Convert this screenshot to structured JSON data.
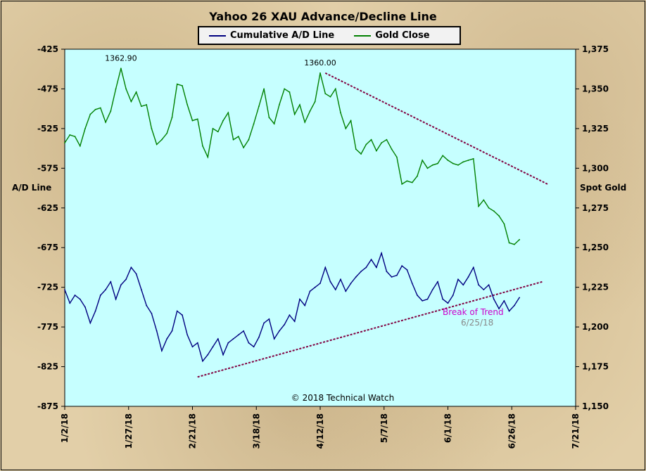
{
  "chart_data": {
    "type": "line",
    "title": "Yahoo 26 XAU Advance/Decline  Line",
    "ylabel_left": "A/D Line",
    "ylabel_right": "Spot Gold",
    "x_tick_labels": [
      "1/2/18",
      "1/27/18",
      "2/21/18",
      "3/18/18",
      "4/12/18",
      "5/7/18",
      "6/1/18",
      "6/26/18",
      "7/21/18"
    ],
    "x_tick_dates": [
      "2018-01-02",
      "2018-01-27",
      "2018-02-21",
      "2018-03-18",
      "2018-04-12",
      "2018-05-07",
      "2018-06-01",
      "2018-06-26",
      "2018-07-21"
    ],
    "xlim": [
      "2018-01-02",
      "2018-07-21"
    ],
    "ylim_left": [
      -875,
      -425
    ],
    "ylim_right": [
      1150,
      1375
    ],
    "y_left_ticks": [
      -425,
      -475,
      -525,
      -575,
      -625,
      -675,
      -725,
      -775,
      -825,
      -875
    ],
    "y_right_ticks": [
      "1,375",
      "1,350",
      "1,325",
      "1,300",
      "1,275",
      "1,250",
      "1,225",
      "1,200",
      "1,175",
      "1,150"
    ],
    "y_right_tick_values": [
      1375,
      1350,
      1325,
      1300,
      1275,
      1250,
      1225,
      1200,
      1175,
      1150
    ],
    "series": [
      {
        "name": "Cumulative A/D Line",
        "axis": "left",
        "color": "#000080",
        "x": [
          "2018-01-02",
          "2018-01-04",
          "2018-01-06",
          "2018-01-08",
          "2018-01-10",
          "2018-01-12",
          "2018-01-14",
          "2018-01-16",
          "2018-01-18",
          "2018-01-20",
          "2018-01-22",
          "2018-01-24",
          "2018-01-26",
          "2018-01-28",
          "2018-01-30",
          "2018-02-01",
          "2018-02-03",
          "2018-02-05",
          "2018-02-07",
          "2018-02-09",
          "2018-02-11",
          "2018-02-13",
          "2018-02-15",
          "2018-02-17",
          "2018-02-19",
          "2018-02-21",
          "2018-02-23",
          "2018-02-25",
          "2018-02-27",
          "2018-03-01",
          "2018-03-03",
          "2018-03-05",
          "2018-03-07",
          "2018-03-09",
          "2018-03-11",
          "2018-03-13",
          "2018-03-15",
          "2018-03-17",
          "2018-03-19",
          "2018-03-21",
          "2018-03-23",
          "2018-03-25",
          "2018-03-27",
          "2018-03-29",
          "2018-03-31",
          "2018-04-02",
          "2018-04-04",
          "2018-04-06",
          "2018-04-08",
          "2018-04-10",
          "2018-04-12",
          "2018-04-14",
          "2018-04-16",
          "2018-04-18",
          "2018-04-20",
          "2018-04-22",
          "2018-04-24",
          "2018-04-26",
          "2018-04-28",
          "2018-04-30",
          "2018-05-02",
          "2018-05-04",
          "2018-05-06",
          "2018-05-08",
          "2018-05-10",
          "2018-05-12",
          "2018-05-14",
          "2018-05-16",
          "2018-05-18",
          "2018-05-20",
          "2018-05-22",
          "2018-05-24",
          "2018-05-26",
          "2018-05-28",
          "2018-05-30",
          "2018-06-01",
          "2018-06-03",
          "2018-06-05",
          "2018-06-07",
          "2018-06-09",
          "2018-06-11",
          "2018-06-13",
          "2018-06-15",
          "2018-06-17",
          "2018-06-19",
          "2018-06-21",
          "2018-06-23",
          "2018-06-25",
          "2018-06-27",
          "2018-06-29"
        ],
        "values": [
          -728,
          -745,
          -735,
          -740,
          -750,
          -770,
          -755,
          -735,
          -728,
          -718,
          -740,
          -722,
          -715,
          -700,
          -708,
          -728,
          -748,
          -758,
          -780,
          -805,
          -790,
          -780,
          -755,
          -760,
          -785,
          -800,
          -795,
          -818,
          -810,
          -800,
          -790,
          -810,
          -795,
          -790,
          -785,
          -780,
          -795,
          -800,
          -788,
          -770,
          -765,
          -790,
          -780,
          -772,
          -760,
          -768,
          -740,
          -748,
          -730,
          -725,
          -720,
          -700,
          -718,
          -728,
          -715,
          -730,
          -720,
          -712,
          -705,
          -700,
          -690,
          -700,
          -682,
          -705,
          -712,
          -710,
          -698,
          -703,
          -720,
          -735,
          -742,
          -740,
          -728,
          -718,
          -740,
          -745,
          -735,
          -715,
          -722,
          -712,
          -700,
          -722,
          -728,
          -722,
          -740,
          -752,
          -742,
          -755,
          -748,
          -738
        ]
      },
      {
        "name": "Gold Close",
        "axis": "right",
        "color": "#008000",
        "x": [
          "2018-01-02",
          "2018-01-04",
          "2018-01-06",
          "2018-01-08",
          "2018-01-10",
          "2018-01-12",
          "2018-01-14",
          "2018-01-16",
          "2018-01-18",
          "2018-01-20",
          "2018-01-22",
          "2018-01-24",
          "2018-01-26",
          "2018-01-28",
          "2018-01-30",
          "2018-02-01",
          "2018-02-03",
          "2018-02-05",
          "2018-02-07",
          "2018-02-09",
          "2018-02-11",
          "2018-02-13",
          "2018-02-15",
          "2018-02-17",
          "2018-02-19",
          "2018-02-21",
          "2018-02-23",
          "2018-02-25",
          "2018-02-27",
          "2018-03-01",
          "2018-03-03",
          "2018-03-05",
          "2018-03-07",
          "2018-03-09",
          "2018-03-11",
          "2018-03-13",
          "2018-03-15",
          "2018-03-17",
          "2018-03-19",
          "2018-03-21",
          "2018-03-23",
          "2018-03-25",
          "2018-03-27",
          "2018-03-29",
          "2018-03-31",
          "2018-04-02",
          "2018-04-04",
          "2018-04-06",
          "2018-04-08",
          "2018-04-10",
          "2018-04-12",
          "2018-04-14",
          "2018-04-16",
          "2018-04-18",
          "2018-04-20",
          "2018-04-22",
          "2018-04-24",
          "2018-04-26",
          "2018-04-28",
          "2018-04-30",
          "2018-05-02",
          "2018-05-04",
          "2018-05-06",
          "2018-05-08",
          "2018-05-10",
          "2018-05-12",
          "2018-05-14",
          "2018-05-16",
          "2018-05-18",
          "2018-05-20",
          "2018-05-22",
          "2018-05-24",
          "2018-05-26",
          "2018-05-28",
          "2018-05-30",
          "2018-06-01",
          "2018-06-03",
          "2018-06-05",
          "2018-06-07",
          "2018-06-09",
          "2018-06-11",
          "2018-06-13",
          "2018-06-15",
          "2018-06-17",
          "2018-06-19",
          "2018-06-21",
          "2018-06-23",
          "2018-06-25",
          "2018-06-27",
          "2018-06-29"
        ],
        "values": [
          1316,
          1321,
          1320,
          1314,
          1325,
          1334,
          1337,
          1338,
          1329,
          1336,
          1350,
          1362.9,
          1350,
          1342,
          1348,
          1339,
          1340,
          1325,
          1315,
          1318,
          1322,
          1332,
          1353,
          1352,
          1340,
          1330,
          1331,
          1314,
          1307,
          1325,
          1323,
          1330,
          1335,
          1318,
          1320,
          1313,
          1318,
          1328,
          1339,
          1350,
          1332,
          1328,
          1340,
          1350,
          1348,
          1334,
          1340,
          1329,
          1336,
          1342,
          1360,
          1347,
          1345,
          1350,
          1335,
          1325,
          1330,
          1312,
          1309,
          1315,
          1318,
          1311,
          1316,
          1318,
          1312,
          1307,
          1290,
          1292,
          1291,
          1295,
          1305,
          1300,
          1302,
          1303,
          1308,
          1305,
          1303,
          1302,
          1304,
          1305,
          1306,
          1276,
          1280,
          1275,
          1273,
          1270,
          1265,
          1253,
          1252,
          1255
        ]
      }
    ],
    "annotations": [
      {
        "text": "1362.90",
        "x": "2018-01-24",
        "y": 1362.9,
        "axis": "right"
      },
      {
        "text": "1360.00",
        "x": "2018-04-12",
        "y": 1360,
        "axis": "right"
      },
      {
        "text": "Break of Trend",
        "color": "#cc00cc"
      },
      {
        "text": "6/25/18",
        "color": "#888888"
      },
      {
        "text": "© 2018 Technical Watch"
      }
    ],
    "trendlines": [
      {
        "name": "gold-resistance",
        "axis": "right",
        "x": [
          "2018-04-14",
          "2018-07-10"
        ],
        "y": [
          1360,
          1290
        ],
        "color": "#800040"
      },
      {
        "name": "ad-support",
        "axis": "left",
        "x": [
          "2018-02-23",
          "2018-07-08"
        ],
        "y": [
          -838,
          -718
        ],
        "color": "#800040"
      }
    ],
    "plot_background": "#c6ffff",
    "grid": false,
    "legend_placement": "top-center"
  }
}
